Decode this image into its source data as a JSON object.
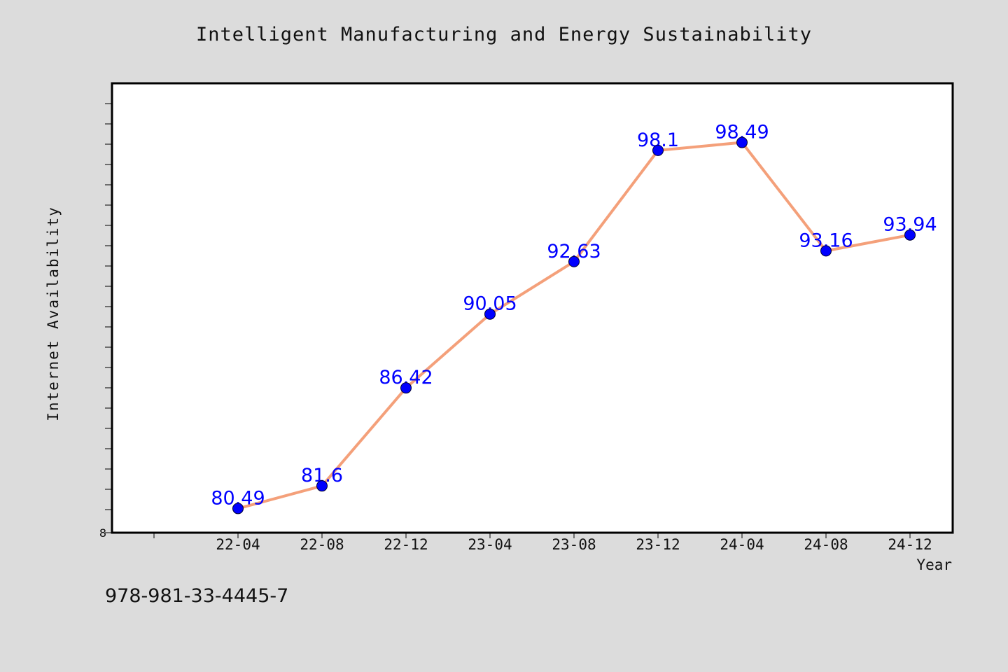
{
  "chart_data": {
    "type": "line",
    "title": "Intelligent Manufacturing and Energy Sustainability",
    "xlabel": "Year",
    "ylabel": "Internet Availability",
    "categories": [
      "22-04",
      "22-08",
      "22-12",
      "23-04",
      "23-08",
      "23-12",
      "24-04",
      "24-08",
      "24-12"
    ],
    "series": [
      {
        "values": [
          80.49,
          81.6,
          86.42,
          90.05,
          92.63,
          98.1,
          98.49,
          93.16,
          93.94
        ],
        "labels": [
          "80.49",
          "81.6",
          "86.42",
          "90.05",
          "92.63",
          "98.1",
          "98.49",
          "93.16",
          "93.94"
        ]
      }
    ],
    "y_ticks_shown": [
      "8"
    ],
    "ylim": [
      79.3,
      101.4
    ],
    "grid": false,
    "line_color": "#f4a07a",
    "marker_color": "#0000ff",
    "label_color": "#0000ff"
  },
  "footer": {
    "isbn": "978-981-33-4445-7"
  }
}
